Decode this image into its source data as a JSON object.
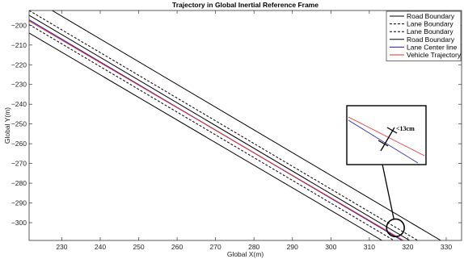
{
  "chart_data": {
    "type": "line",
    "title": "Trajectory in Global Inertial Reference Frame",
    "xlabel": "Global X(m)",
    "ylabel": "Global Y(m)",
    "xlim": [
      221.5,
      334
    ],
    "ylim": [
      -309,
      -192.5
    ],
    "xticks": [
      230,
      240,
      250,
      260,
      270,
      280,
      290,
      300,
      310,
      320,
      330
    ],
    "yticks": [
      -200,
      -210,
      -220,
      -230,
      -240,
      -250,
      -260,
      -270,
      -280,
      -290,
      -300
    ],
    "grid": false,
    "legend_position": "top-right",
    "series": [
      {
        "name": "Road Boundary",
        "color": "#000000",
        "dash": "solid",
        "x": [
          221.5,
          320.5
        ],
        "y": [
          -194.9,
          -309
        ]
      },
      {
        "name": "Lane Boundary",
        "color": "#000000",
        "dash": "dashed",
        "x": [
          221.5,
          322.6
        ],
        "y": [
          -192.5,
          -309
        ]
      },
      {
        "name": "Lane Boundary",
        "color": "#000000",
        "dash": "dashed",
        "x": [
          221.5,
          316.4
        ],
        "y": [
          -199.6,
          -309
        ]
      },
      {
        "name": "Road Boundary",
        "color": "#000000",
        "dash": "solid",
        "x": [
          221.5,
          328.6
        ],
        "y": [
          -185.6,
          -309
        ]
      },
      {
        "name": "Lane Center line",
        "color": "#1a1aa8",
        "dash": "solid",
        "x": [
          221.5,
          318.5
        ],
        "y": [
          -197.2,
          -309
        ]
      },
      {
        "name": "Vehicle Trajectory",
        "color": "#e03030",
        "dash": "solid",
        "x": [
          221.5,
          318.9
        ],
        "y": [
          -197.8,
          -309
        ]
      },
      {
        "name": "",
        "color": "#000000",
        "dash": "solid",
        "x": [
          221.5,
          313.3
        ],
        "y": [
          -203.9,
          -309
        ]
      }
    ],
    "annotation": {
      "text": "<13cm",
      "circle_center": [
        316.8,
        -302.6
      ],
      "circle_radius_x": 2.3
    }
  }
}
